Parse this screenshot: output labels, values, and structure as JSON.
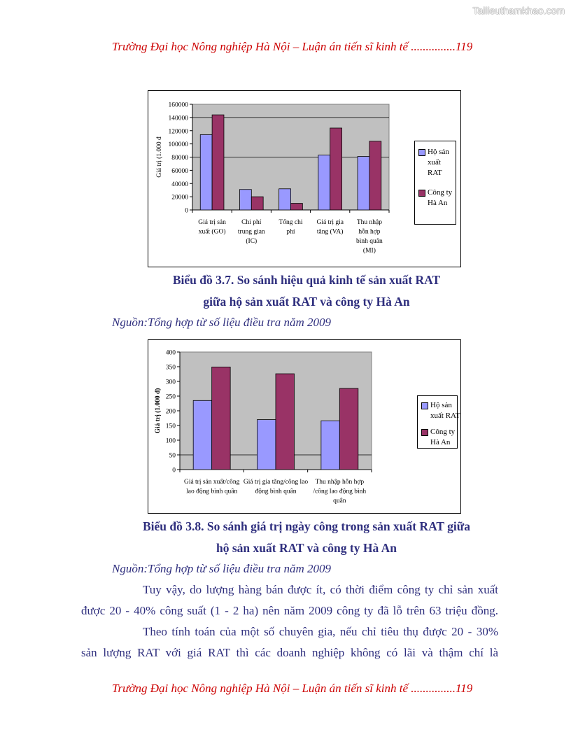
{
  "watermark": "Tailieuthamkhao.com",
  "header": {
    "running_title": "Trường Đại học Nông nghiệp Hà Nội – Luận án tiến sĩ kinh tế ...............119"
  },
  "footer": {
    "running_title": "Trường Đại học Nông nghiệp Hà Nội – Luận án tiến sĩ kinh tế ...............119"
  },
  "figure1": {
    "caption_line1": "Biểu đồ 3.7. So sánh hiệu quả kinh tế sản xuất RAT",
    "caption_line2": "giữa hộ sản xuất RAT và công ty Hà An",
    "source": "Nguồn:Tổng hợp từ số liệu điều tra năm 2009"
  },
  "figure2": {
    "caption_line1": "Biểu đồ 3.8. So sánh giá trị ngày công trong sản xuất RAT giữa",
    "caption_line2": "hộ sản xuất RAT và công ty Hà An",
    "source": "Nguồn:Tổng hợp từ số liệu điều tra năm 2009"
  },
  "body": {
    "para1_line1": "Tuy vậy, do lượng hàng bán được ít, có thời điểm công ty chỉ sản xuất",
    "para1_line2": "được 20 - 40% công suất (1 - 2 ha) nên năm 2009 công ty đã lỗ trên 63 triệu đồng.",
    "para2_line1": "Theo tính toán của một số chuyên gia, nếu chỉ tiêu thụ được 20 - 30%",
    "para2_line2": "sản lượng RAT với giá RAT thì các doanh nghiệp không có lãi và thậm chí là"
  },
  "chart_data": [
    {
      "type": "bar",
      "ylabel": "Giá trị (1.000 đ",
      "ylim": [
        0,
        160000
      ],
      "yticks": [
        0,
        20000,
        40000,
        60000,
        80000,
        100000,
        120000,
        140000,
        160000
      ],
      "categories": [
        [
          "Giá trị sản",
          "xuất (GO)"
        ],
        [
          "Chi phí",
          "trung gian",
          "(IC)"
        ],
        [
          "Tổng chi",
          "phí"
        ],
        [
          "Giá trị gia",
          "tăng (VA)"
        ],
        [
          "Thu nhập",
          "hỗn hợp",
          "bình quân",
          "(MI)"
        ]
      ],
      "series": [
        {
          "name": "Hộ sản\nxuất\nRAT",
          "color": "#9999ff",
          "values": [
            114000,
            31000,
            32000,
            83000,
            81000
          ]
        },
        {
          "name": "Công ty\nHà An",
          "color": "#993366",
          "values": [
            144000,
            20000,
            10000,
            124000,
            104000
          ]
        }
      ],
      "gridlines": [
        80000,
        140000
      ],
      "plot_background": "#c0c0c0",
      "legend_position": "right"
    },
    {
      "type": "bar",
      "ylabel": "Giá trị (1.000 đ)",
      "ylim": [
        0,
        400
      ],
      "yticks": [
        0,
        50,
        100,
        150,
        200,
        250,
        300,
        350,
        400
      ],
      "categories": [
        [
          "Giá trị sản xuất/công",
          "lao động bình quân"
        ],
        [
          "Giá trị gia tăng/công lao",
          "động bình quân"
        ],
        [
          "Thu nhập hỗn hợp",
          "/công lao động bình",
          "quân"
        ]
      ],
      "series": [
        {
          "name": "Hộ sản\nxuất RAT",
          "color": "#9999ff",
          "values": [
            235,
            170,
            166
          ]
        },
        {
          "name": "Công ty\nHà An",
          "color": "#993366",
          "values": [
            349,
            326,
            276
          ]
        }
      ],
      "gridlines": [
        50
      ],
      "plot_background": "#c0c0c0",
      "legend_position": "right"
    }
  ]
}
